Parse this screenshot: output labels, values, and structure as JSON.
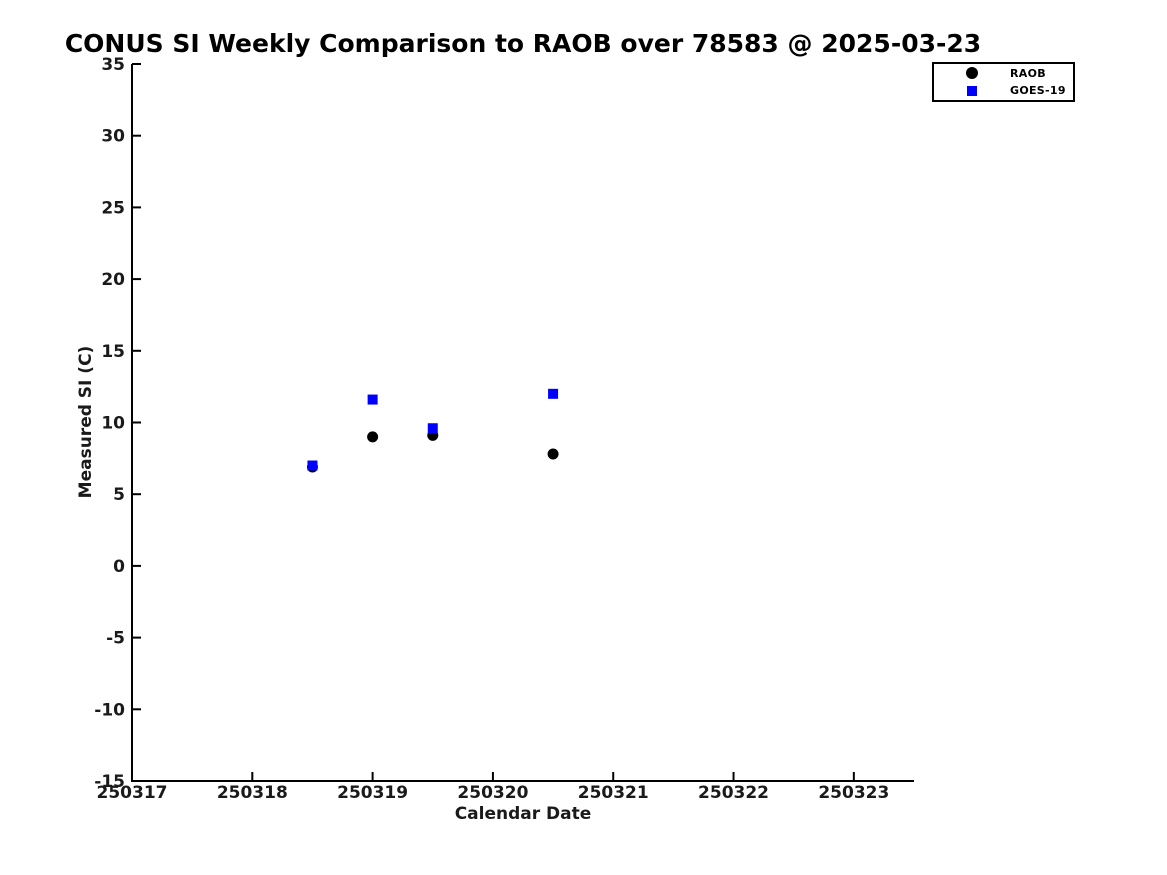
{
  "chart_data": {
    "type": "scatter",
    "title": "CONUS SI Weekly Comparison to RAOB over 78583 @ 2025-03-23",
    "xlabel": "Calendar Date",
    "ylabel": "Measured SI (C)",
    "xlim": [
      250317,
      250323.5
    ],
    "ylim": [
      -15,
      35
    ],
    "xticks": [
      250317,
      250318,
      250319,
      250320,
      250321,
      250322,
      250323
    ],
    "yticks": [
      -15,
      -10,
      -5,
      0,
      5,
      10,
      15,
      20,
      25,
      30,
      35
    ],
    "grid": false,
    "axis_color": "#000000",
    "series": [
      {
        "name": "RAOB",
        "marker": "circle",
        "color": "#000000",
        "x": [
          250318.5,
          250319.0,
          250319.5,
          250320.5
        ],
        "y": [
          6.9,
          9.0,
          9.1,
          7.8
        ]
      },
      {
        "name": "GOES-19",
        "marker": "square",
        "color": "#0000ff",
        "x": [
          250318.5,
          250319.0,
          250319.5,
          250320.5
        ],
        "y": [
          7.0,
          11.6,
          9.6,
          12.0
        ]
      }
    ],
    "legend": {
      "position": "top-right",
      "entries": [
        {
          "label": "RAOB",
          "marker": "circle",
          "color": "#000000"
        },
        {
          "label": "GOES-19",
          "marker": "square",
          "color": "#0000ff"
        }
      ]
    }
  }
}
